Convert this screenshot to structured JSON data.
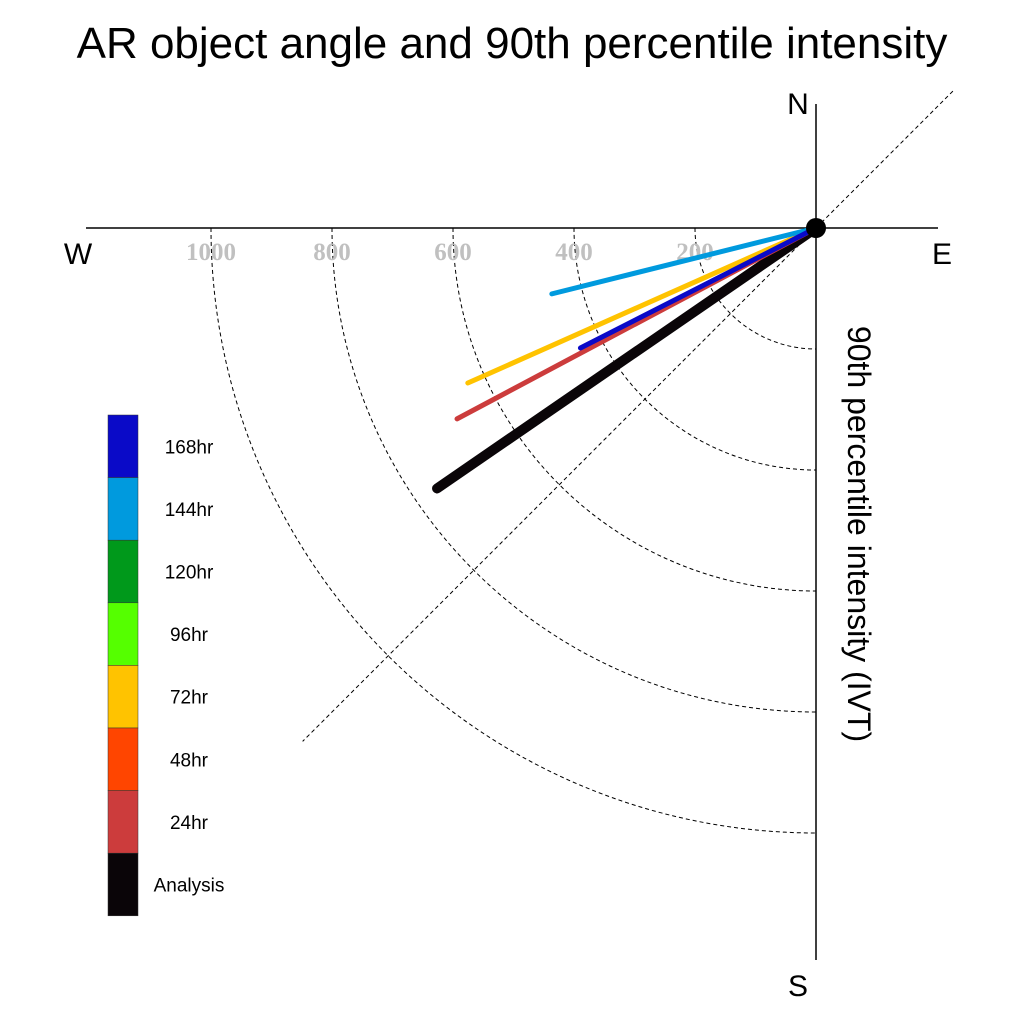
{
  "chart_data": {
    "type": "polar-vector",
    "title": "AR object angle and 90th percentile intensity",
    "ylabel": "90th percentile intensity (IVT)",
    "compass": {
      "north": "N",
      "south": "S",
      "east": "E",
      "west": "W"
    },
    "radial_ticks": [
      200,
      400,
      600,
      800,
      1000
    ],
    "radial_tick_labels": [
      "200",
      "400",
      "600",
      "800",
      "1000"
    ],
    "rmax": 1200,
    "angle_units": "degrees clockwise from north",
    "series": [
      {
        "name": "Analysis",
        "color": "#0a0508",
        "angle_deg": 235.5,
        "value": 760
      },
      {
        "name": "24hr",
        "color": "#cc3c3c",
        "angle_deg": 242.0,
        "value": 672
      },
      {
        "name": "48hr",
        "color": "#ff4500",
        "angle_deg": 242.0,
        "value": 0
      },
      {
        "name": "72hr",
        "color": "#ffc300",
        "angle_deg": 246.0,
        "value": 630
      },
      {
        "name": "96hr",
        "color": "#55ff00",
        "angle_deg": 246.0,
        "value": 0
      },
      {
        "name": "120hr",
        "color": "#00991b",
        "angle_deg": 246.0,
        "value": 0
      },
      {
        "name": "144hr",
        "color": "#009ade",
        "angle_deg": 256.0,
        "value": 450
      },
      {
        "name": "168hr",
        "color": "#0a0ac8",
        "angle_deg": 243.0,
        "value": 437
      }
    ],
    "legend": {
      "placement": "left",
      "items": [
        "168hr",
        "144hr",
        "120hr",
        "96hr",
        "72hr",
        "48hr",
        "24hr",
        "Analysis"
      ],
      "colors": [
        "#0a0ac8",
        "#009ade",
        "#00991b",
        "#55ff00",
        "#ffc300",
        "#ff4500",
        "#cc3c3c",
        "#0a0508"
      ]
    }
  }
}
